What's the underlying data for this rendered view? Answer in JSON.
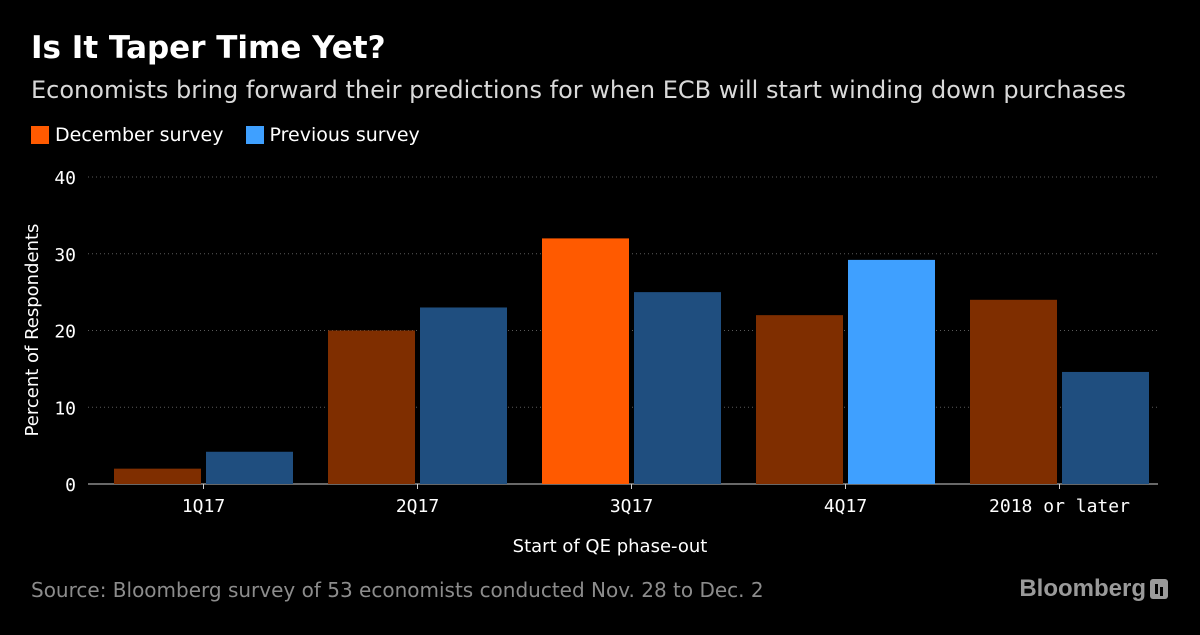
{
  "header": {
    "title": "Is It Taper Time Yet?",
    "subtitle": "Economists bring forward their predictions for when ECB will start winding down purchases"
  },
  "footer": {
    "source": "Source: Bloomberg survey of 53 economists conducted Nov. 28 to Dec. 2",
    "brand": "Bloomberg"
  },
  "colors": {
    "december": "#7f2e00",
    "december_highlight": "#ff5a00",
    "previous": "#1f4e7f",
    "previous_highlight": "#3fa0ff",
    "legend_december": "#ff5a00",
    "legend_previous": "#3fa0ff"
  },
  "chart_data": {
    "type": "bar",
    "title": "Is It Taper Time Yet?",
    "subtitle": "Economists bring forward their predictions for when ECB will start winding down purchases",
    "xlabel": "Start of QE phase-out",
    "ylabel": "Percent of Respondents",
    "categories": [
      "1Q17",
      "2Q17",
      "3Q17",
      "4Q17",
      "2018 or later"
    ],
    "series": [
      {
        "name": "December survey",
        "values": [
          2,
          20,
          32,
          22,
          24
        ],
        "highlight_index": 2
      },
      {
        "name": "Previous survey",
        "values": [
          4.2,
          23,
          25,
          29.2,
          14.6
        ],
        "highlight_index": 3
      }
    ],
    "ylim": [
      0,
      40
    ],
    "yticks": [
      "0",
      "10",
      "20",
      "30",
      "40"
    ],
    "grid": true,
    "legend": "top-left"
  }
}
